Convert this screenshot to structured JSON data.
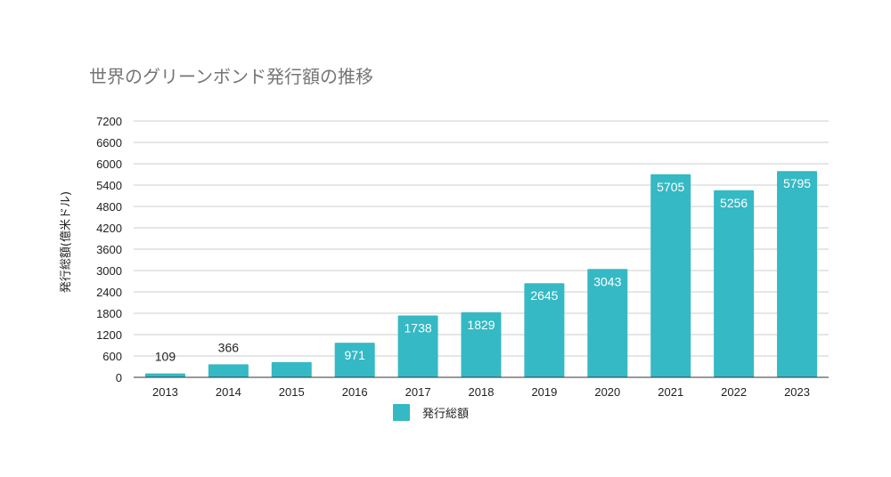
{
  "chart_data": {
    "type": "bar",
    "title": "世界のグリーンボンド発行額の推移",
    "xlabel": "",
    "ylabel": "発行総額(億米ドル)",
    "categories": [
      "2013",
      "2014",
      "2015",
      "2016",
      "2017",
      "2018",
      "2019",
      "2020",
      "2021",
      "2022",
      "2023"
    ],
    "series": [
      {
        "name": "発行総額",
        "color": "#35b9c4",
        "values": [
          109,
          366,
          427,
          971,
          1738,
          1829,
          2645,
          3043,
          5705,
          5256,
          5795
        ],
        "data_labels": [
          "109",
          "366",
          "",
          "971",
          "1738",
          "1829",
          "2645",
          "3043",
          "5705",
          "5256",
          "5795"
        ]
      }
    ],
    "ylim": [
      0,
      7200
    ],
    "yticks": [
      0,
      600,
      1200,
      1800,
      2400,
      3000,
      3600,
      4200,
      4800,
      5400,
      6000,
      6600,
      7200
    ],
    "grid": true,
    "legend": "bottom"
  }
}
